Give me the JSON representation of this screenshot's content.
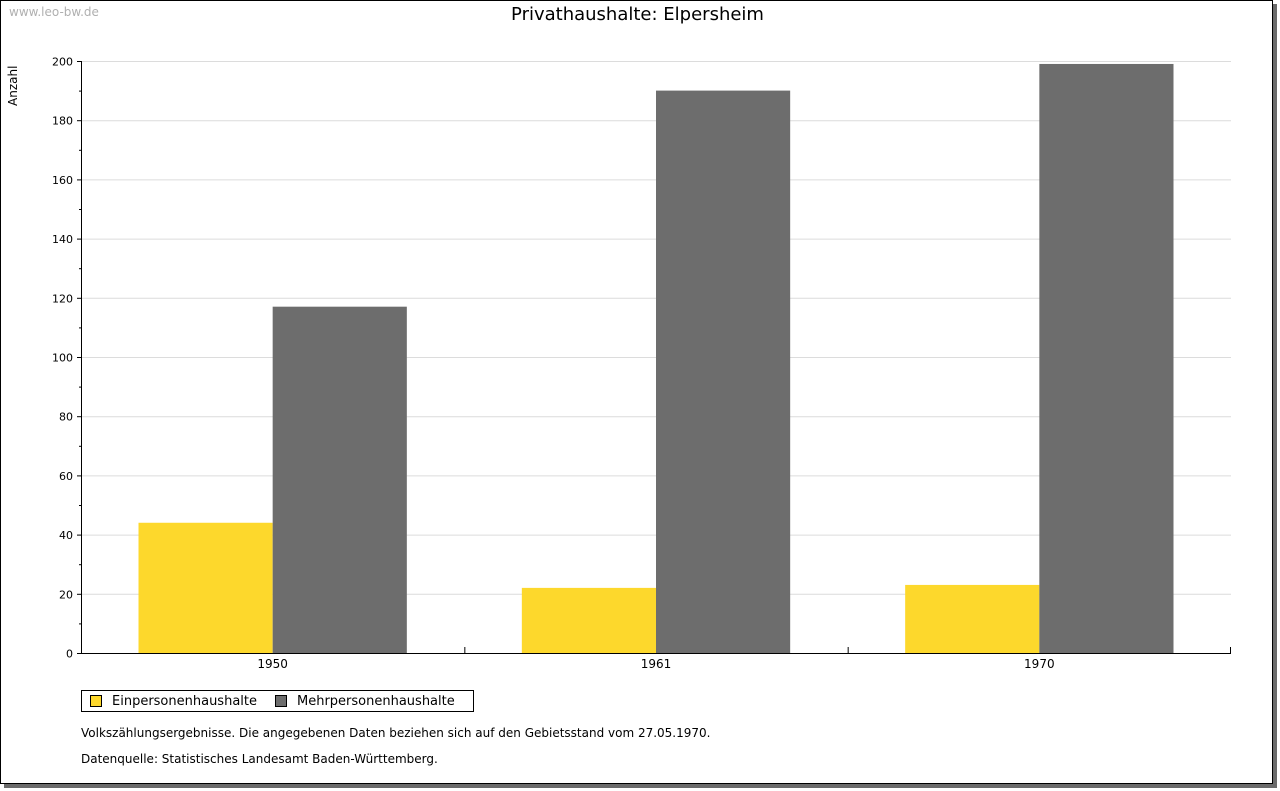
{
  "watermark": "www.leo-bw.de",
  "chart_data": {
    "type": "bar",
    "title": "Privathaushalte: Elpersheim",
    "xlabel": "",
    "ylabel": "Anzahl",
    "categories": [
      "1950",
      "1961",
      "1970"
    ],
    "ylim": [
      0,
      200
    ],
    "yticks": [
      0,
      20,
      40,
      60,
      80,
      100,
      120,
      140,
      160,
      180,
      200
    ],
    "grid": true,
    "series": [
      {
        "name": "Einpersonenhaushalte",
        "color": "#fdd82c",
        "values": [
          44,
          22,
          23
        ]
      },
      {
        "name": "Mehrpersonenhaushalte",
        "color": "#6d6d6d",
        "values": [
          117,
          190,
          199
        ]
      }
    ],
    "legend_position": "bottom-left"
  },
  "notes": {
    "line1": "Volkszählungsergebnisse. Die angegebenen Daten beziehen sich auf den Gebietsstand vom 27.05.1970.",
    "line2": "Datenquelle: Statistisches Landesamt Baden-Württemberg."
  }
}
